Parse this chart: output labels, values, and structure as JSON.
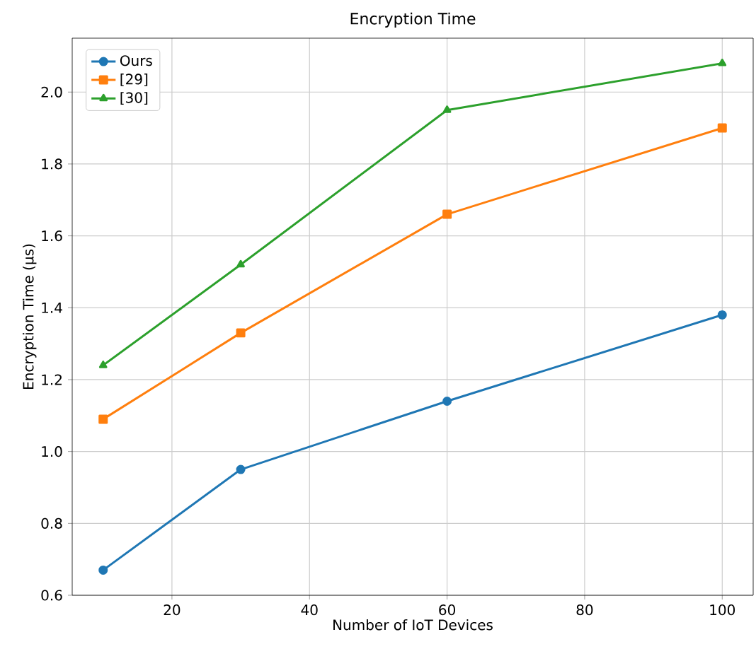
{
  "chart_data": {
    "type": "line",
    "title": "Encryption Time",
    "xlabel": "Number of IoT Devices",
    "ylabel": "Encryption Time (µs)",
    "x": [
      10,
      30,
      60,
      100
    ],
    "series": [
      {
        "name": "Ours",
        "color": "#1f77b4",
        "marker": "circle",
        "values": [
          0.67,
          0.95,
          1.14,
          1.38
        ]
      },
      {
        "name": "[29]",
        "color": "#ff7f0e",
        "marker": "square",
        "values": [
          1.09,
          1.33,
          1.66,
          1.9
        ]
      },
      {
        "name": "[30]",
        "color": "#2ca02c",
        "marker": "triangle",
        "values": [
          1.24,
          1.52,
          1.95,
          2.08
        ]
      }
    ],
    "xlim": [
      5.5,
      104.5
    ],
    "ylim": [
      0.6,
      2.15
    ],
    "xticks": [
      20,
      40,
      60,
      80,
      100
    ],
    "yticks": [
      {
        "value": 0.6,
        "label": "0.6"
      },
      {
        "value": 0.8,
        "label": "0.8"
      },
      {
        "value": 1.0,
        "label": "1.0"
      },
      {
        "value": 1.2,
        "label": "1.2"
      },
      {
        "value": 1.4,
        "label": "1.4"
      },
      {
        "value": 1.6,
        "label": "1.6"
      },
      {
        "value": 1.8,
        "label": "1.8"
      },
      {
        "value": 2.0,
        "label": "2.0"
      }
    ],
    "grid": true,
    "legend": "top left",
    "line_style": "solid"
  }
}
